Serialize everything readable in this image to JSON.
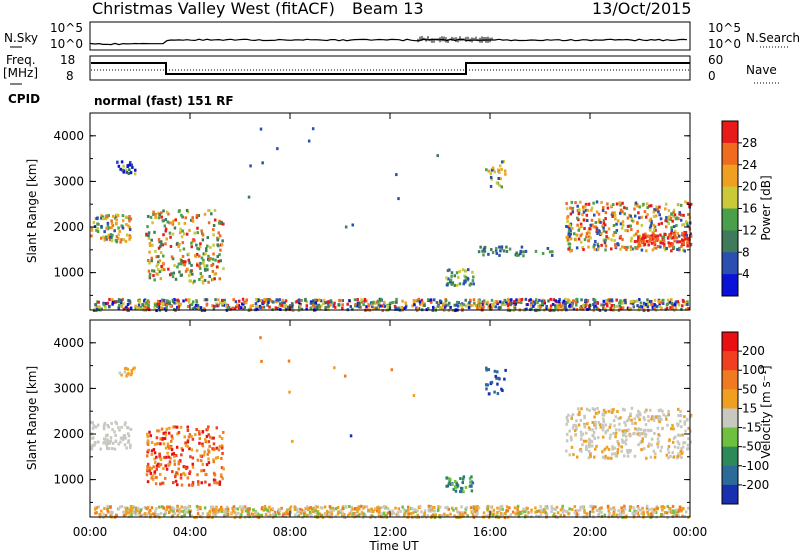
{
  "header": {
    "radar": "Christmas Valley West (fitACF)",
    "beam": "Beam 13",
    "date": "13/Oct/2015"
  },
  "noise_panel": {
    "left_label": "N.Sky",
    "right_label": "N.Search",
    "left_ticks": [
      "10^5",
      "10^0"
    ],
    "right_ticks": [
      "10^5",
      "10^0"
    ]
  },
  "freq_panel": {
    "left_label_1": "Freq.",
    "left_label_2": "[MHz]",
    "left_ticks": [
      "18",
      "8"
    ],
    "right_label": "Nave",
    "right_ticks": [
      "60",
      "0"
    ],
    "cpid_label": "CPID",
    "cpid_text": "normal (fast) 151 RF"
  },
  "chart_data": [
    {
      "type": "heatmap",
      "quantity": "Power",
      "ylabel": "Slant Range [km]",
      "ylim": [
        180,
        4500
      ],
      "yticks": [
        "4000",
        "3000",
        "2000",
        "1000"
      ],
      "colorbar_label": "Power [dB]",
      "colorbar_ticks": [
        "28",
        "24",
        "20",
        "16",
        "12",
        "8",
        "4"
      ],
      "colors": [
        "#0a12d8",
        "#2a4fb0",
        "#3f7a5a",
        "#4aa04a",
        "#c9c93a",
        "#f0a020",
        "#f06a20",
        "#e81a1a"
      ]
    },
    {
      "type": "heatmap",
      "quantity": "Velocity",
      "ylabel": "Slant Range [km]",
      "ylim": [
        180,
        4500
      ],
      "yticks": [
        "4000",
        "3000",
        "2000",
        "1000"
      ],
      "colorbar_label": "Velocity [m s⁻¹]",
      "colorbar_ticks": [
        "200",
        "100",
        "50",
        "15",
        "-15",
        "-50",
        "-100",
        "-200"
      ],
      "colors": [
        "#1830b0",
        "#2c6a9a",
        "#2c8a5a",
        "#70c040",
        "#c8c8c0",
        "#f0a020",
        "#f07a20",
        "#f04020",
        "#e81010"
      ]
    }
  ],
  "time_axis": {
    "ticks": [
      "00:00",
      "04:00",
      "08:00",
      "12:00",
      "16:00",
      "20:00",
      "00:00"
    ],
    "label": "Time UT"
  }
}
